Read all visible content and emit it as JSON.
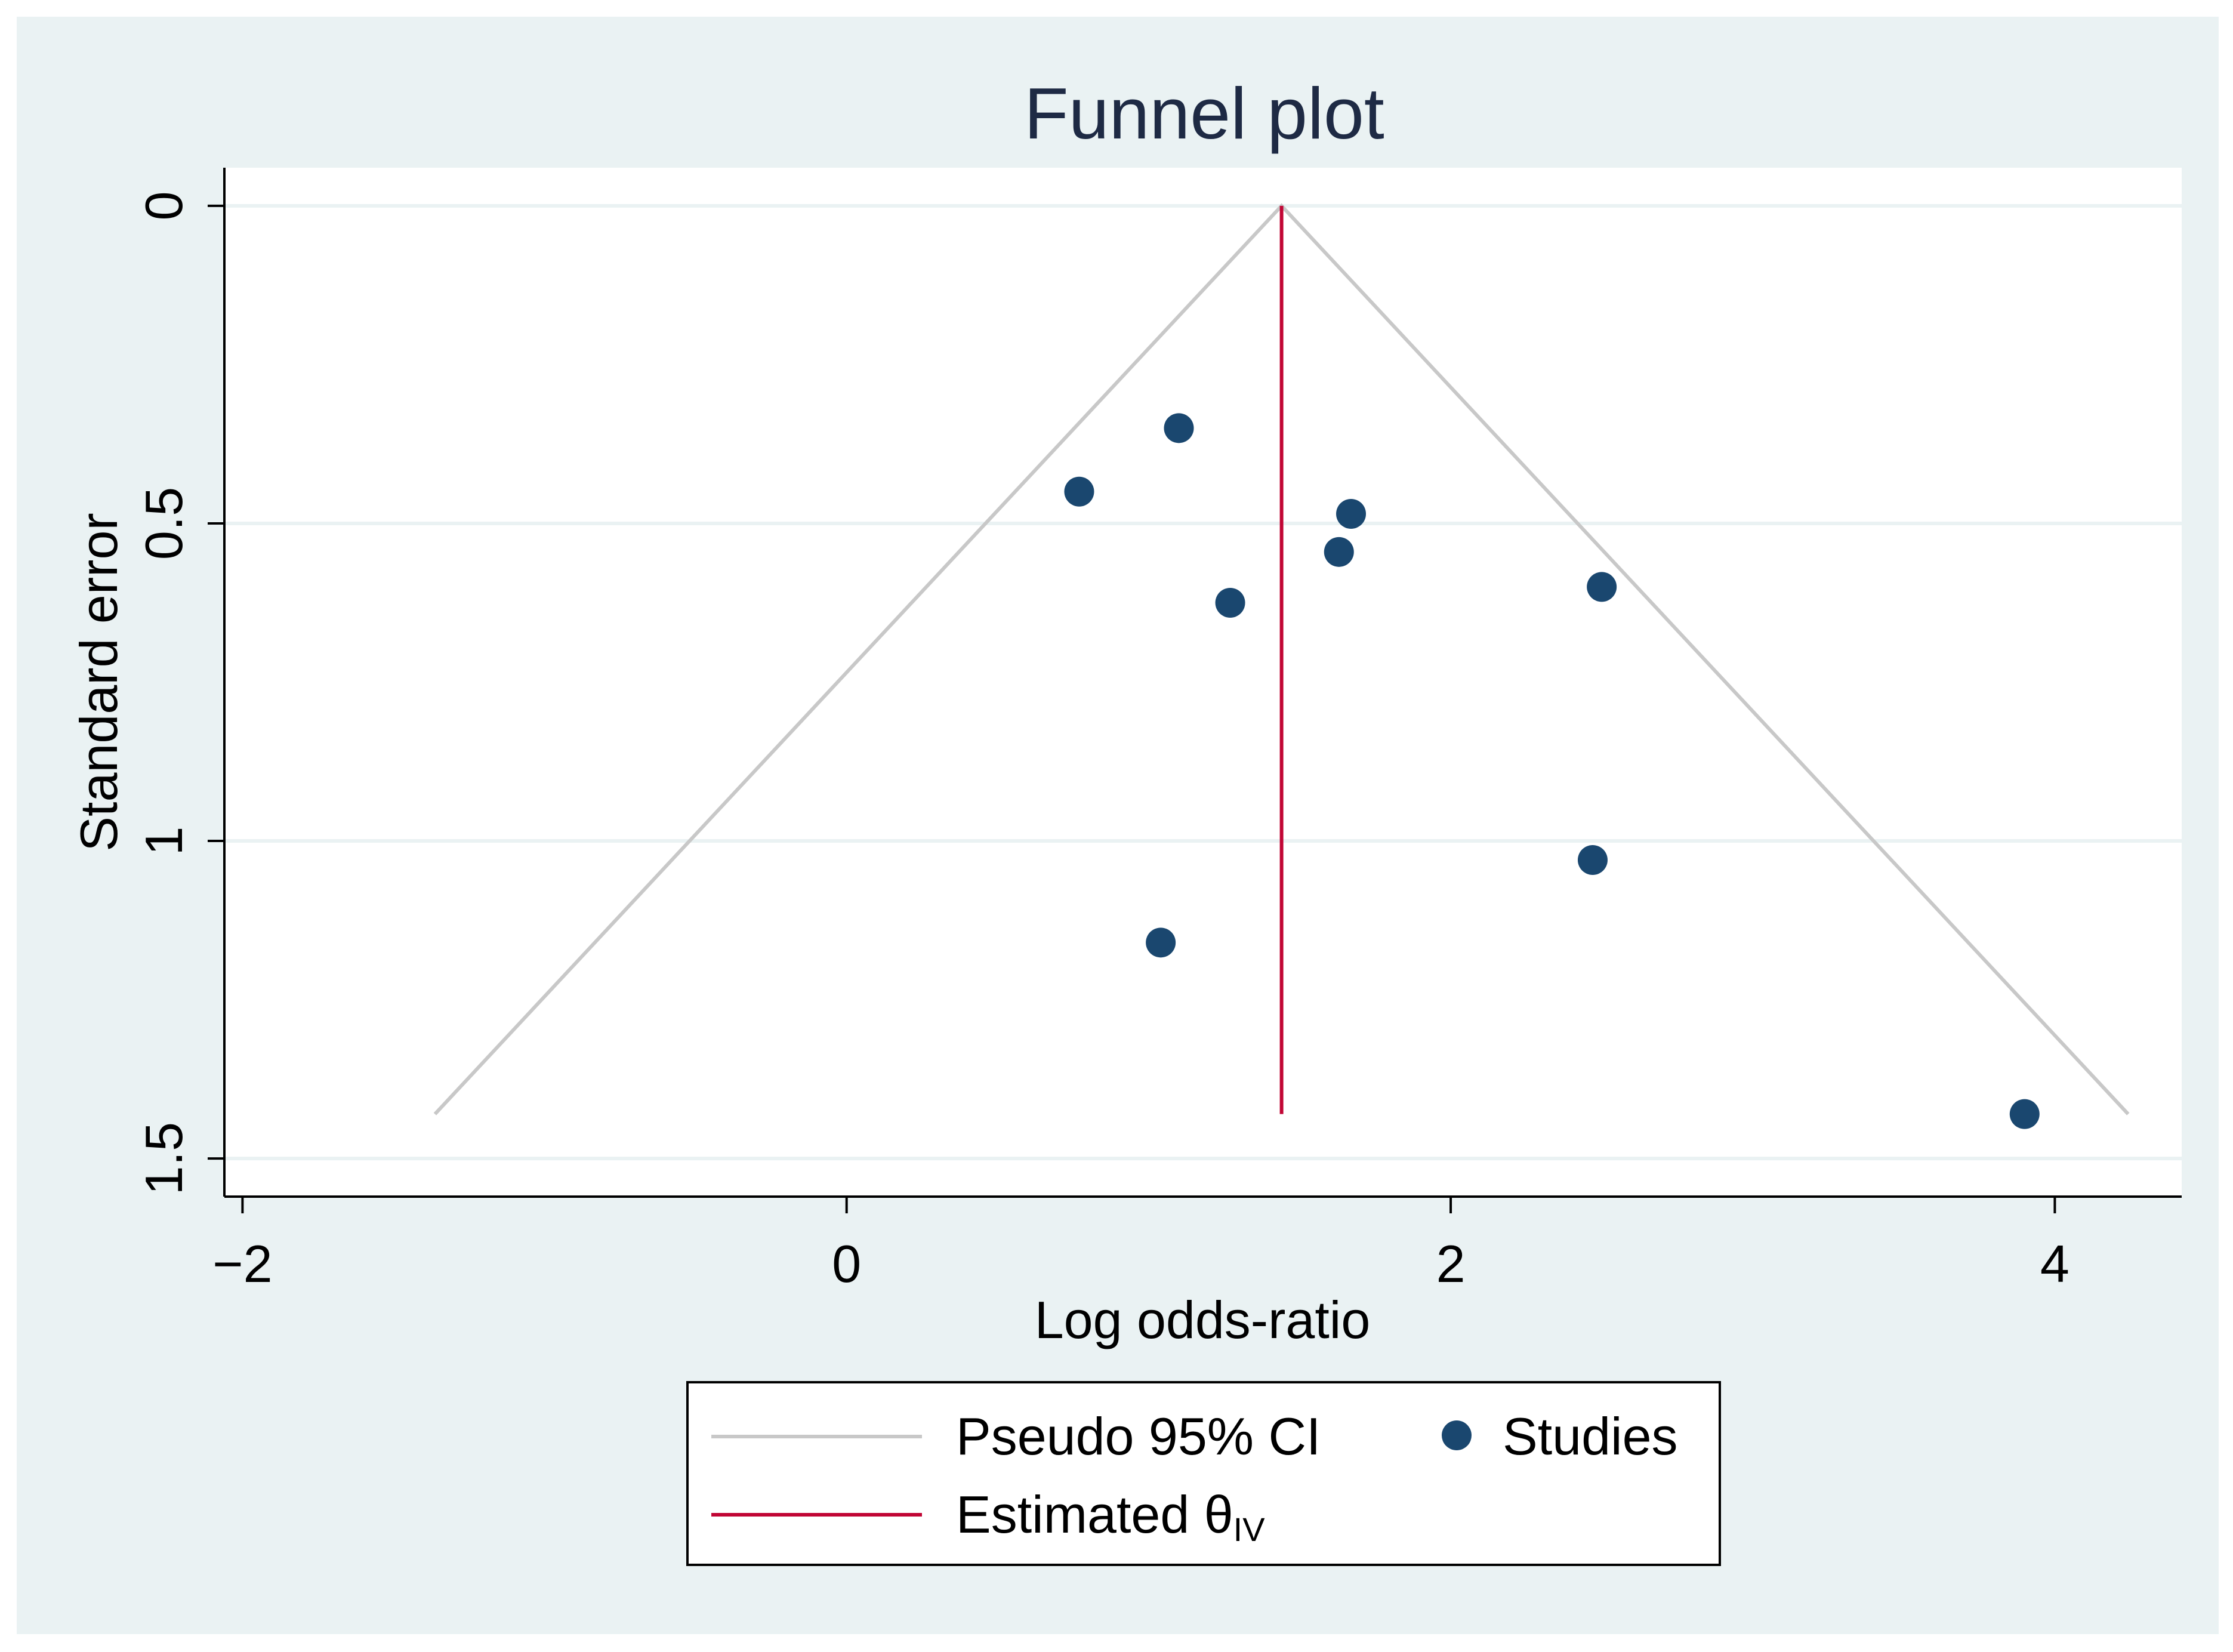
{
  "chart_data": {
    "type": "scatter",
    "title": "Funnel plot",
    "xlabel": "Log odds-ratio",
    "ylabel": "Standard error",
    "xlim": [
      -2.06,
      4.42
    ],
    "ylim": [
      1.56,
      -0.06
    ],
    "y_reversed": true,
    "xticks": [
      -2,
      0,
      2,
      4
    ],
    "xtick_labels": [
      "−2",
      "0",
      "2",
      "4"
    ],
    "yticks": [
      0,
      0.5,
      1,
      1.5
    ],
    "ytick_labels": [
      "0",
      "0.5",
      "1",
      "1.5"
    ],
    "grid": "horizontal",
    "legend_position": "bottom",
    "estimate": 1.44,
    "se_max": 1.43,
    "series": [
      {
        "name": "Studies",
        "kind": "scatter",
        "color": "#1a476f",
        "points": [
          {
            "x": 1.1,
            "y": 0.35
          },
          {
            "x": 0.77,
            "y": 0.45
          },
          {
            "x": 1.67,
            "y": 0.485
          },
          {
            "x": 1.63,
            "y": 0.545
          },
          {
            "x": 2.5,
            "y": 0.6
          },
          {
            "x": 1.27,
            "y": 0.625
          },
          {
            "x": 2.47,
            "y": 1.03
          },
          {
            "x": 1.04,
            "y": 1.16
          },
          {
            "x": 3.9,
            "y": 1.43
          }
        ]
      },
      {
        "name": "Pseudo 95% CI",
        "kind": "line",
        "color": "#c8c8c8"
      },
      {
        "name": "Estimated θ",
        "subscript": "IV",
        "kind": "line",
        "color": "#c10534"
      }
    ]
  },
  "colors": {
    "outer_background": "#eaf2f3",
    "plot_background": "#ffffff",
    "grid": "#eaf2f3",
    "text": "#000000",
    "title": "#1e2a44"
  }
}
